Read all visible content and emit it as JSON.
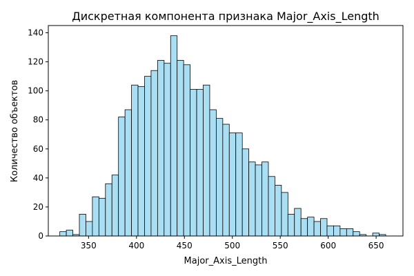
{
  "chart_data": {
    "type": "bar",
    "title": "Дискретная компонента признака Major_Axis_Length",
    "xlabel": "Major_Axis_Length",
    "ylabel": "Количество объектов",
    "xlim": [
      308,
      678
    ],
    "ylim": [
      0,
      145
    ],
    "x_ticks": [
      350,
      400,
      450,
      500,
      550,
      600,
      650
    ],
    "y_ticks": [
      0,
      20,
      40,
      60,
      80,
      100,
      120,
      140
    ],
    "bin_width": 6.8,
    "bins_start": [
      320,
      326.8,
      333.6,
      340.4,
      347.2,
      354,
      360.8,
      367.6,
      374.4,
      381.2,
      388,
      394.8,
      401.6,
      408.4,
      415.2,
      422,
      428.8,
      435.6,
      442.4,
      449.2,
      456,
      462.8,
      469.6,
      476.4,
      483.2,
      490,
      496.8,
      503.6,
      510.4,
      517.2,
      524,
      530.8,
      537.6,
      544.4,
      551.2,
      558,
      564.8,
      571.6,
      578.4,
      585.2,
      592,
      598.8,
      605.6,
      612.4,
      619.2,
      626,
      632.8,
      639.6,
      646.4,
      653.2
    ],
    "values": [
      3,
      4,
      1,
      15,
      10,
      27,
      26,
      36,
      42,
      82,
      87,
      104,
      103,
      110,
      114,
      121,
      119,
      138,
      121,
      118,
      101,
      101,
      104,
      87,
      81,
      77,
      71,
      71,
      60,
      51,
      49,
      51,
      41,
      35,
      30,
      15,
      19,
      12,
      13,
      10,
      12,
      7,
      7,
      5,
      5,
      3,
      1,
      0,
      2,
      1
    ],
    "bar_color": "#a9def3",
    "edge_color": "#000000",
    "grid": false,
    "legend": "none"
  }
}
